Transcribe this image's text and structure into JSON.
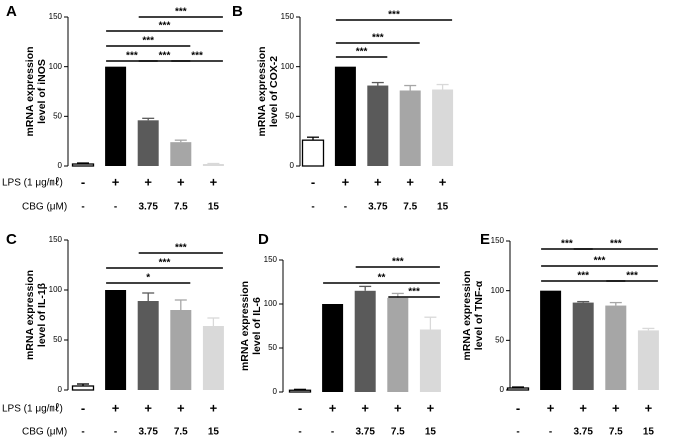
{
  "treatment_rows": [
    {
      "lps": "LPS (1 μg/㎖)",
      "cbg": "CBG (μM)"
    },
    {
      "lps": "LPS (1 μg/㎖)",
      "cbg": "CBG (μM)"
    }
  ],
  "chart_data": [
    {
      "type": "bar",
      "panel": "A",
      "ylabel": [
        "mRNA expression",
        "level of iNOS"
      ],
      "values": [
        2,
        100,
        46,
        24,
        2
      ],
      "errors": [
        1,
        0,
        2,
        2,
        0.5
      ],
      "colors": [
        "#ffffff",
        "#000000",
        "#5a5a5a",
        "#a6a6a6",
        "#d9d9d9"
      ],
      "ylim": [
        0,
        150
      ],
      "yticks": [
        0,
        50,
        100,
        150
      ],
      "lps": [
        "-",
        "+",
        "+",
        "+",
        "+"
      ],
      "cbg": [
        "-",
        "-",
        "3.75",
        "7.5",
        "15"
      ],
      "significance": [
        [
          {
            "bars": [
              2,
              4
            ],
            "label": "***"
          }
        ],
        [
          {
            "bars": [
              1,
              4
            ],
            "label": "***"
          }
        ],
        [
          {
            "bars": [
              1,
              3
            ],
            "label": "***"
          }
        ],
        [
          {
            "bars": [
              1,
              2
            ],
            "label": "***"
          },
          {
            "bars": [
              2,
              3
            ],
            "label": "***"
          },
          {
            "bars": [
              3,
              4
            ],
            "label": "***"
          }
        ]
      ]
    },
    {
      "type": "bar",
      "panel": "B",
      "ylabel": [
        "mRNA expression",
        "level of COX-2"
      ],
      "values": [
        26,
        100,
        81,
        76,
        77
      ],
      "errors": [
        3,
        0,
        3,
        5,
        5
      ],
      "colors": [
        "#ffffff",
        "#000000",
        "#5a5a5a",
        "#a6a6a6",
        "#d9d9d9"
      ],
      "ylim": [
        0,
        150
      ],
      "yticks": [
        0,
        50,
        100,
        150
      ],
      "lps": [
        "-",
        "+",
        "+",
        "+",
        "+"
      ],
      "cbg": [
        "-",
        "-",
        "3.75",
        "7.5",
        "15"
      ],
      "significance": [
        [
          {
            "bars": [
              1,
              4
            ],
            "label": "***"
          }
        ],
        [
          {
            "bars": [
              1,
              3
            ],
            "label": "***"
          }
        ],
        [
          {
            "bars": [
              1,
              2
            ],
            "label": "***"
          }
        ]
      ]
    },
    {
      "type": "bar",
      "panel": "C",
      "ylabel": [
        "mRNA expression",
        "level of IL-1β"
      ],
      "values": [
        4,
        100,
        89,
        80,
        64
      ],
      "errors": [
        2,
        0,
        8,
        10,
        8
      ],
      "colors": [
        "#ffffff",
        "#000000",
        "#5a5a5a",
        "#a6a6a6",
        "#d9d9d9"
      ],
      "ylim": [
        0,
        150
      ],
      "yticks": [
        0,
        50,
        100,
        150
      ],
      "lps": [
        "-",
        "+",
        "+",
        "+",
        "+"
      ],
      "cbg": [
        "-",
        "-",
        "3.75",
        "7.5",
        "15"
      ],
      "significance": [
        [
          {
            "bars": [
              2,
              4
            ],
            "label": "***"
          }
        ],
        [
          {
            "bars": [
              1,
              4
            ],
            "label": "***"
          }
        ],
        [
          {
            "bars": [
              1,
              3
            ],
            "label": "*"
          }
        ]
      ]
    },
    {
      "type": "bar",
      "panel": "D",
      "ylabel": [
        "mRNA expression",
        "level of IL-6"
      ],
      "values": [
        2,
        100,
        115,
        107,
        71
      ],
      "errors": [
        1,
        0,
        5,
        5,
        14
      ],
      "colors": [
        "#ffffff",
        "#000000",
        "#5a5a5a",
        "#a6a6a6",
        "#d9d9d9"
      ],
      "ylim": [
        0,
        150
      ],
      "yticks": [
        0,
        50,
        100,
        150
      ],
      "lps": [
        "-",
        "+",
        "+",
        "+",
        "+"
      ],
      "cbg": [
        "-",
        "-",
        "3.75",
        "7.5",
        "15"
      ],
      "significance": [
        [
          {
            "bars": [
              2,
              4
            ],
            "label": "***"
          }
        ],
        [
          {
            "bars": [
              1,
              4
            ],
            "label": "**"
          }
        ],
        [
          {
            "bars": [
              3,
              4
            ],
            "label": "***"
          }
        ]
      ]
    },
    {
      "type": "bar",
      "panel": "E",
      "ylabel": [
        "mRNA expression",
        "level of TNF-α"
      ],
      "values": [
        2,
        100,
        88,
        85,
        60
      ],
      "errors": [
        1,
        0,
        1,
        3,
        2
      ],
      "colors": [
        "#ffffff",
        "#000000",
        "#5a5a5a",
        "#a6a6a6",
        "#d9d9d9"
      ],
      "ylim": [
        0,
        150
      ],
      "yticks": [
        0,
        50,
        100,
        150
      ],
      "lps": [
        "-",
        "+",
        "+",
        "+",
        "+"
      ],
      "cbg": [
        "-",
        "-",
        "3.75",
        "7.5",
        "15"
      ],
      "significance": [
        [
          {
            "bars": [
              1,
              2
            ],
            "label": "***"
          },
          {
            "bars": [
              2,
              4
            ],
            "label": "***"
          }
        ],
        [
          {
            "bars": [
              1,
              4
            ],
            "label": "***"
          }
        ],
        [
          {
            "bars": [
              1,
              3
            ],
            "label": "***"
          },
          {
            "bars": [
              3,
              4
            ],
            "label": "***"
          }
        ]
      ]
    }
  ]
}
